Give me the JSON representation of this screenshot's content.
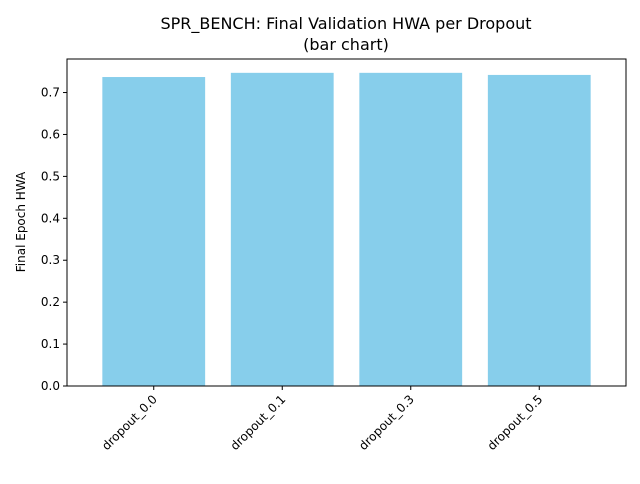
{
  "chart_data": {
    "type": "bar",
    "title": "SPR_BENCH: Final Validation HWA per Dropout",
    "subtitle": "(bar chart)",
    "xlabel": "",
    "ylabel": "Final Epoch HWA",
    "categories": [
      "dropout_0.0",
      "dropout_0.1",
      "dropout_0.3",
      "dropout_0.5"
    ],
    "values": [
      0.737,
      0.747,
      0.747,
      0.742
    ],
    "ylim": [
      0,
      0.78
    ],
    "yticks": [
      "0.0",
      "0.1",
      "0.2",
      "0.3",
      "0.4",
      "0.5",
      "0.6",
      "0.7"
    ],
    "bar_color": "#87ceeb",
    "grid": false,
    "legend": "none"
  }
}
